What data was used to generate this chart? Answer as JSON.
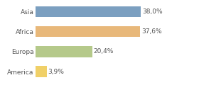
{
  "categories": [
    "America",
    "Europa",
    "Africa",
    "Asia"
  ],
  "values": [
    3.9,
    20.4,
    37.6,
    38.0
  ],
  "bar_colors": [
    "#f0d068",
    "#b5c98a",
    "#e8b87a",
    "#7b9fc0"
  ],
  "labels": [
    "3,9%",
    "20,4%",
    "37,6%",
    "38,0%"
  ],
  "xlim": [
    0,
    46
  ],
  "background_color": "#ffffff",
  "label_fontsize": 6.5,
  "tick_fontsize": 6.5,
  "bar_height": 0.55
}
